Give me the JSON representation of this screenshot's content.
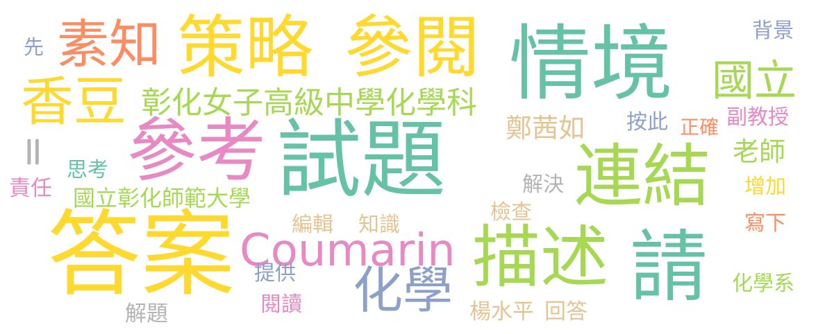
{
  "words": [
    {
      "text": "情境",
      "color": "#66c2a5"
    },
    {
      "text": "試題",
      "color": "#66c2a5"
    },
    {
      "text": "答案",
      "color": "#ffd92f"
    },
    {
      "text": "參考",
      "color": "#e78ac3"
    },
    {
      "text": "策略",
      "color": "#ffd92f"
    },
    {
      "text": "參閱",
      "color": "#ffd92f"
    },
    {
      "text": "描述",
      "color": "#a6d854"
    },
    {
      "text": "請",
      "color": "#66c2a5"
    },
    {
      "text": "連結",
      "color": "#a6d854"
    },
    {
      "text": "素知",
      "color": "#fc8d62"
    },
    {
      "text": "香豆",
      "color": "#ffd92f"
    },
    {
      "text": "Coumarin",
      "color": "#e78ac3"
    },
    {
      "text": "化學",
      "color": "#8da0cb"
    },
    {
      "text": "國立",
      "color": "#a6d854"
    },
    {
      "text": "彰化女子高級中學化學科",
      "color": "#a6d854"
    },
    {
      "text": "鄭茜如",
      "color": "#e5c494"
    },
    {
      "text": "老師",
      "color": "#a6d854"
    },
    {
      "text": "國立彰化師範大學",
      "color": "#a6d854"
    },
    {
      "text": "背景",
      "color": "#8da0cb"
    },
    {
      "text": "先",
      "color": "#8da0cb"
    },
    {
      "text": "=",
      "color": "#b3b3b3"
    },
    {
      "text": "思考",
      "color": "#66c2a5"
    },
    {
      "text": "責任",
      "color": "#e78ac3"
    },
    {
      "text": "按此",
      "color": "#8da0cb"
    },
    {
      "text": "正確",
      "color": "#fc8d62"
    },
    {
      "text": "副教授",
      "color": "#e78ac3"
    },
    {
      "text": "解決",
      "color": "#b3b3b3"
    },
    {
      "text": "增加",
      "color": "#ffd92f"
    },
    {
      "text": "檢查",
      "color": "#e5c494"
    },
    {
      "text": "編輯",
      "color": "#e5c494"
    },
    {
      "text": "知識",
      "color": "#e5c494"
    },
    {
      "text": "寫下",
      "color": "#fc8d62"
    },
    {
      "text": "提供",
      "color": "#8da0cb"
    },
    {
      "text": "閱讀",
      "color": "#e78ac3"
    },
    {
      "text": "解題",
      "color": "#b3b3b3"
    },
    {
      "text": "楊水平",
      "color": "#e5c494"
    },
    {
      "text": "回答",
      "color": "#e5c494"
    },
    {
      "text": "化學系",
      "color": "#a6d854"
    }
  ]
}
